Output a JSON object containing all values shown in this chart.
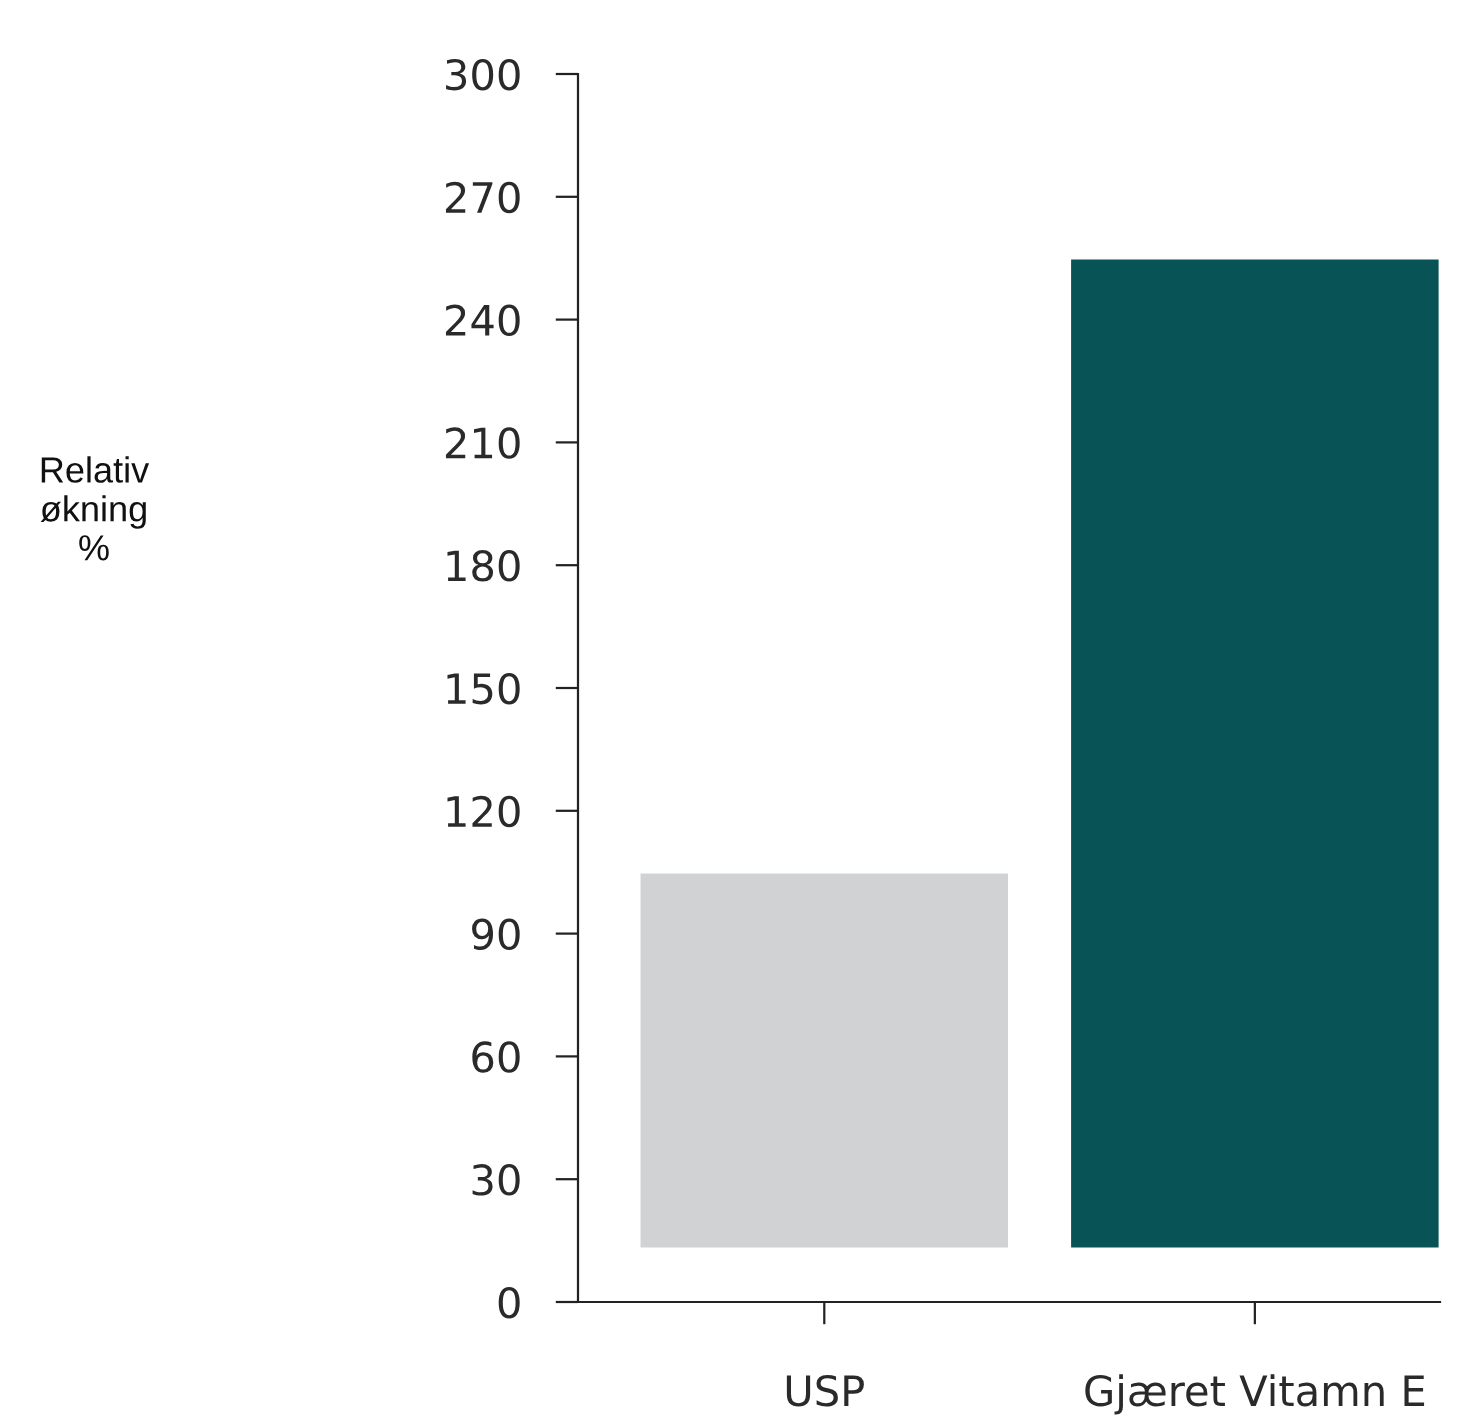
{
  "chart_data": {
    "type": "bar",
    "annotations": [
      "Relativ\nøkning\n%"
    ],
    "categories": [
      "USP",
      "Gjæret Vitamn E"
    ],
    "values": [
      92,
      242
    ],
    "base": [
      13,
      13
    ],
    "colors": [
      "#d1d2d4",
      "#075356"
    ],
    "ylim": [
      0,
      300
    ],
    "yticks": [
      0,
      30,
      60,
      90,
      120,
      150,
      180,
      210,
      240,
      270,
      300
    ],
    "grid": false,
    "legend": false
  }
}
